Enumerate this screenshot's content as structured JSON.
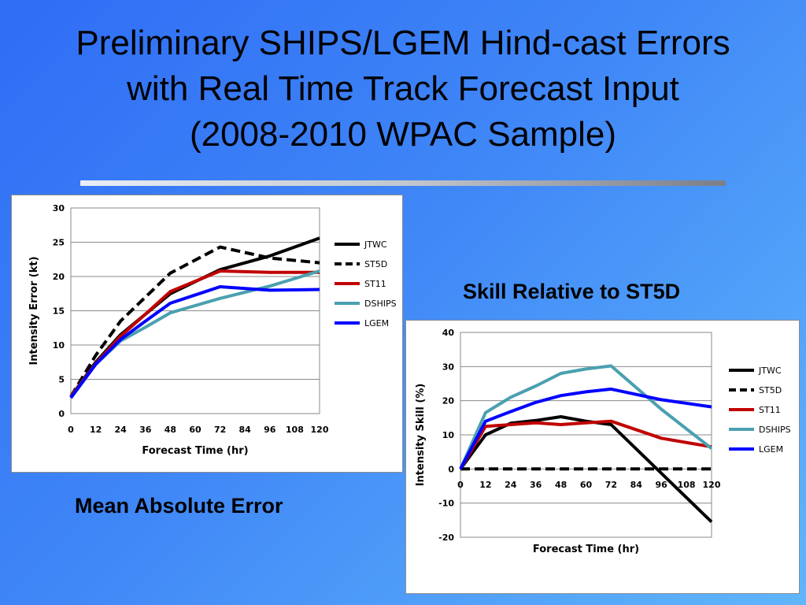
{
  "slide": {
    "title_lines": [
      "Preliminary SHIPS/LGEM Hind-cast Errors",
      "with Real Time Track Forecast Input",
      "(2008-2010 WPAC Sample)"
    ],
    "left_caption": "Mean Absolute Error",
    "right_caption": "Skill Relative to ST5D"
  },
  "chart_data": [
    {
      "type": "line",
      "title": "",
      "xlabel": "Forecast Time (hr)",
      "ylabel": "Intensity Error (kt)",
      "x": [
        0,
        12,
        24,
        36,
        48,
        60,
        72,
        84,
        96,
        108,
        120
      ],
      "xlim": [
        0,
        120
      ],
      "ylim": [
        0,
        30
      ],
      "yticks": [
        0,
        5,
        10,
        15,
        20,
        25,
        30
      ],
      "grid": "horizontal",
      "legend": "right",
      "series": [
        {
          "name": "JTWC",
          "color": "#000000",
          "dashed": false,
          "values": [
            2.5,
            7.5,
            11.5,
            14.5,
            17.5,
            null,
            21.0,
            null,
            23.0,
            null,
            25.6
          ]
        },
        {
          "name": "ST5D",
          "color": "#000000",
          "dashed": true,
          "values": [
            2.5,
            8.5,
            13.5,
            null,
            20.5,
            null,
            24.3,
            null,
            22.7,
            null,
            22.0
          ]
        },
        {
          "name": "ST11",
          "color": "#c00000",
          "dashed": false,
          "values": [
            2.5,
            7.3,
            11.3,
            14.5,
            17.8,
            null,
            20.8,
            null,
            20.6,
            null,
            20.6
          ]
        },
        {
          "name": "DSHIPS",
          "color": "#4aa0b0",
          "dashed": false,
          "values": [
            2.3,
            7.2,
            10.6,
            12.6,
            14.7,
            null,
            16.8,
            null,
            18.6,
            null,
            20.8
          ]
        },
        {
          "name": "LGEM",
          "color": "#0000ff",
          "dashed": false,
          "values": [
            2.3,
            7.2,
            10.8,
            13.5,
            16.1,
            null,
            18.5,
            null,
            18.0,
            null,
            18.1
          ]
        }
      ]
    },
    {
      "type": "line",
      "title": "",
      "xlabel": "Forecast Time (hr)",
      "ylabel": "Intensity Skill (%)",
      "x": [
        0,
        12,
        24,
        36,
        48,
        60,
        72,
        84,
        96,
        108,
        120
      ],
      "xlim": [
        0,
        120
      ],
      "ylim": [
        -20,
        40
      ],
      "yticks": [
        -20,
        -10,
        0,
        10,
        20,
        30,
        40
      ],
      "grid": "horizontal",
      "legend": "right",
      "series": [
        {
          "name": "JTWC",
          "color": "#000000",
          "dashed": false,
          "values": [
            0,
            10.0,
            13.4,
            14.2,
            15.3,
            14.0,
            13.0,
            null,
            null,
            null,
            -15.5
          ]
        },
        {
          "name": "ST5D",
          "color": "#000000",
          "dashed": true,
          "values": [
            0,
            0,
            0,
            0,
            0,
            0,
            0,
            0,
            0,
            0,
            0
          ]
        },
        {
          "name": "ST11",
          "color": "#c00000",
          "dashed": false,
          "values": [
            0,
            12.5,
            13.0,
            13.5,
            13.0,
            13.5,
            14.0,
            null,
            9.0,
            null,
            6.5
          ]
        },
        {
          "name": "DSHIPS",
          "color": "#4aa0b0",
          "dashed": false,
          "values": [
            0,
            16.5,
            21.0,
            24.3,
            28.0,
            29.3,
            30.2,
            null,
            17.5,
            null,
            6.0
          ]
        },
        {
          "name": "LGEM",
          "color": "#0000ff",
          "dashed": false,
          "values": [
            0,
            14.0,
            16.8,
            19.5,
            21.5,
            22.6,
            23.4,
            null,
            20.3,
            null,
            18.2
          ]
        }
      ]
    }
  ]
}
